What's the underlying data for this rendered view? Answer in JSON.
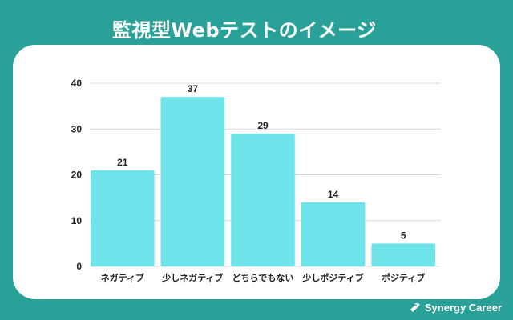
{
  "header": {
    "title": "監視型Webテストのイメージ"
  },
  "brand": {
    "name": "Synergy Career",
    "icon": "synergy-logo-icon"
  },
  "colors": {
    "background": "#2aa198",
    "bar": "#6ee3ea",
    "card": "#ffffff"
  },
  "chart_data": {
    "type": "bar",
    "title": "",
    "xlabel": "",
    "ylabel": "",
    "categories": [
      "ネガティブ",
      "少しネガティブ",
      "どちらでもない",
      "少しポジティブ",
      "ポジティブ"
    ],
    "values": [
      21,
      37,
      29,
      14,
      5
    ],
    "value_labels": [
      "21",
      "37",
      "29",
      "14",
      "5"
    ],
    "ylim": [
      0,
      40
    ],
    "yticks": [
      "0",
      "10",
      "20",
      "30",
      "40"
    ],
    "grid": true,
    "legend": "none"
  }
}
